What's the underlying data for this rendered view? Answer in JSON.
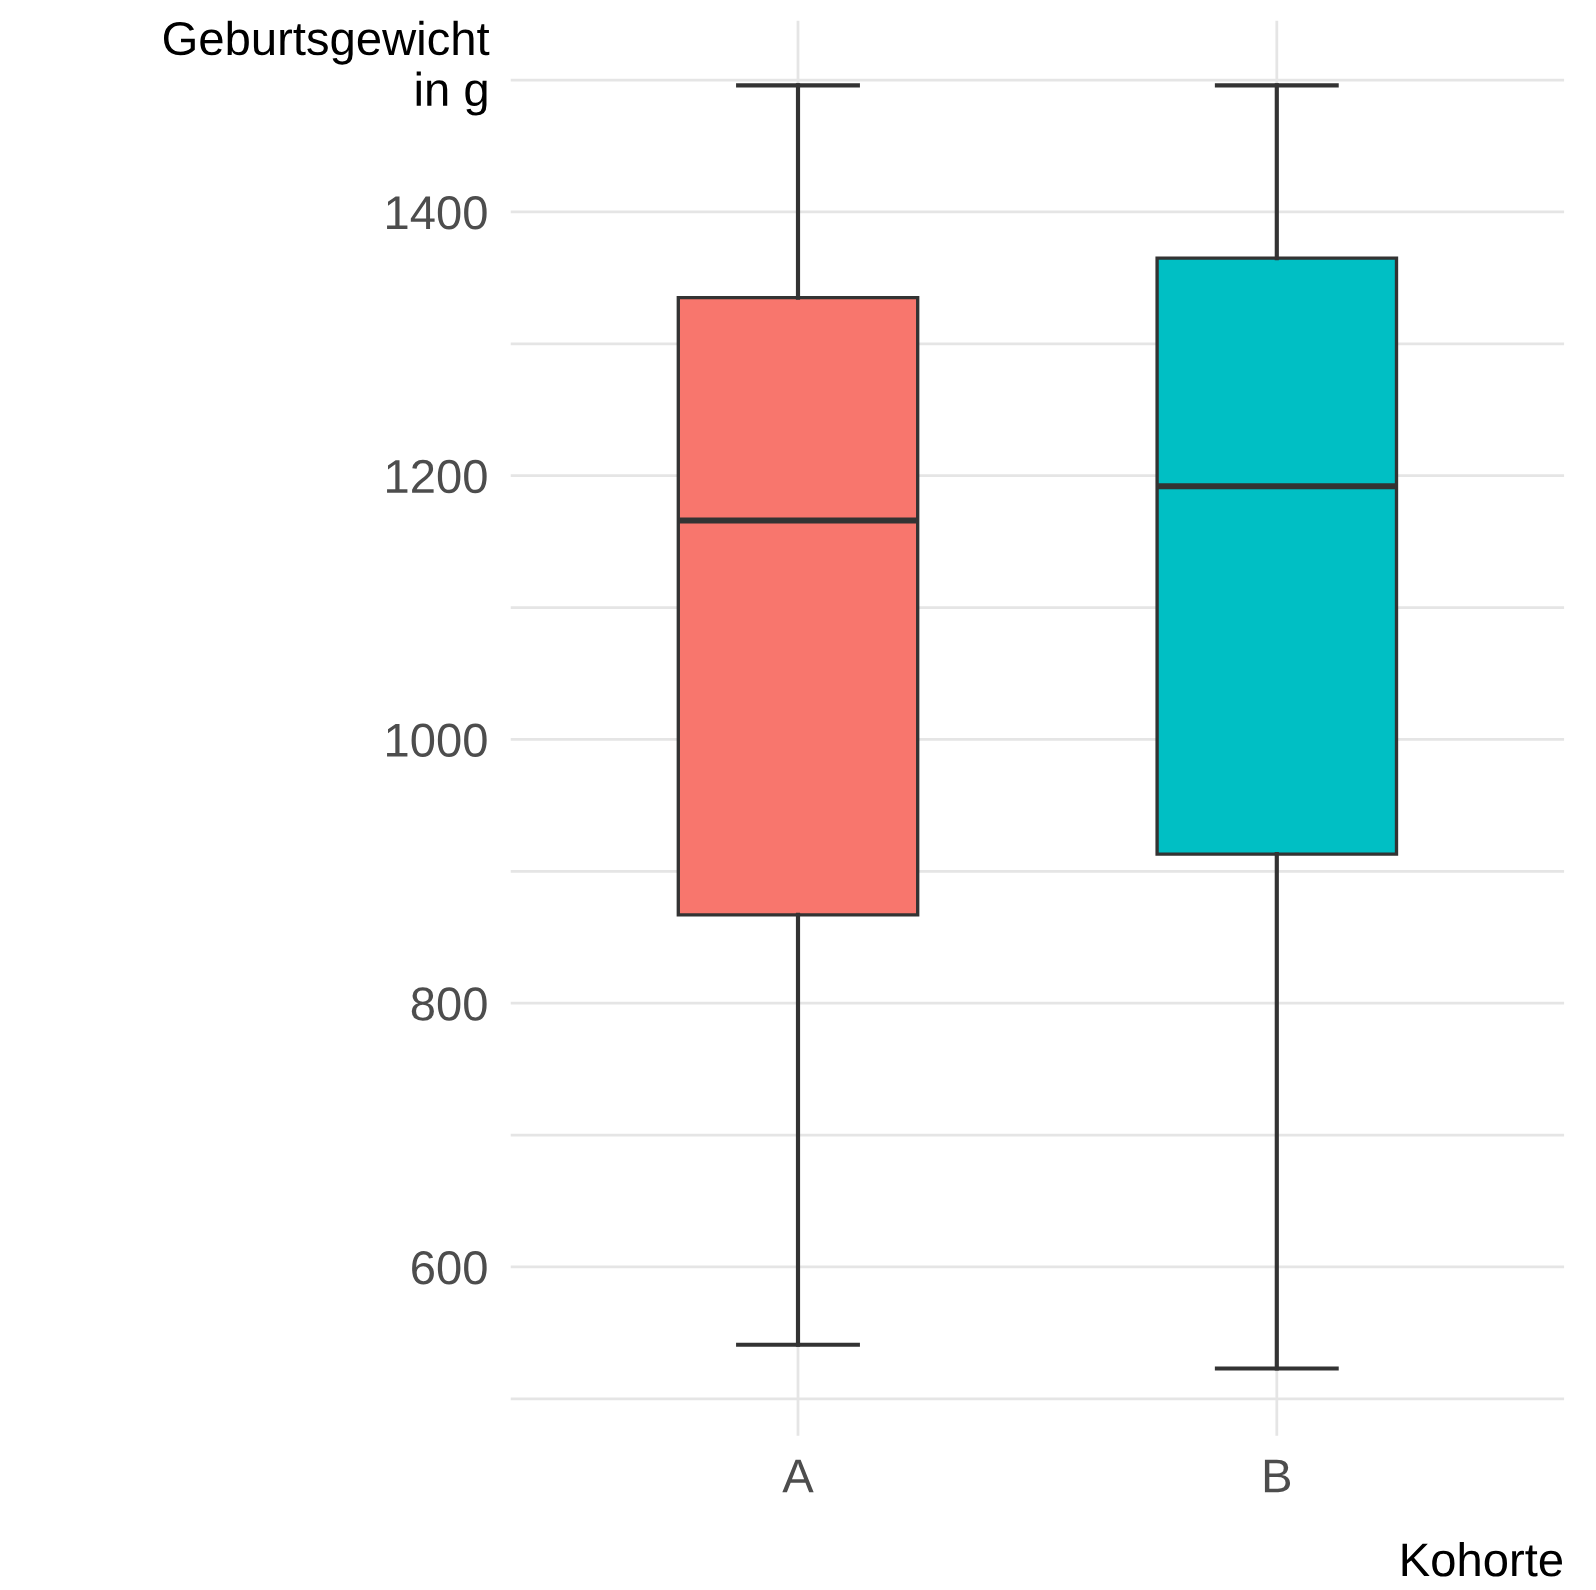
{
  "chart_data": {
    "type": "box",
    "xlabel": "Kohorte",
    "ylabel": "Geburtsgewicht\nin g",
    "categories": [
      "A",
      "B"
    ],
    "series": [
      {
        "colors": [
          "#f8766d",
          "#00bfc4"
        ],
        "boxes": [
          {
            "low": 541,
            "q1": 867,
            "median": 1166,
            "q3": 1335,
            "high": 1496
          },
          {
            "low": 523,
            "q1": 913,
            "median": 1192,
            "q3": 1365,
            "high": 1496
          }
        ]
      }
    ],
    "ylim": [
      472,
      1545
    ],
    "yticks": [
      {
        "value": 500,
        "label": null
      },
      600,
      {
        "value": 700,
        "label": null
      },
      800,
      {
        "value": 900,
        "label": null
      },
      1000,
      {
        "value": 1100,
        "label": null
      },
      1200,
      {
        "value": 1300,
        "label": null
      },
      1400,
      {
        "value": 1500,
        "label": null
      }
    ],
    "grid": true,
    "legend": false
  }
}
